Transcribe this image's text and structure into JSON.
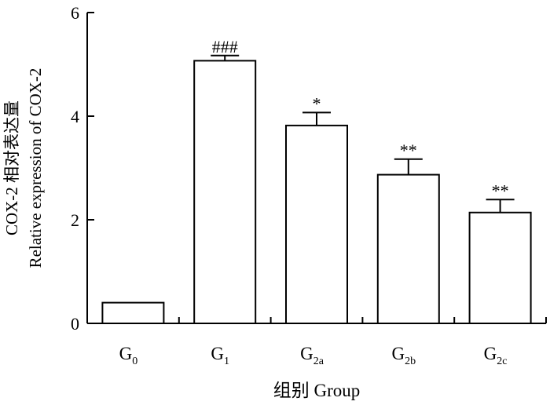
{
  "chart_data": {
    "type": "bar",
    "title": "",
    "xlabel": "组别  Group",
    "ylabel_cn": "COX-2 相对表达量",
    "ylabel_en": "Relative expression of COX-2",
    "ylim": [
      0,
      6
    ],
    "yticks": [
      0,
      2,
      4,
      6
    ],
    "grid": false,
    "categories": [
      {
        "base": "G",
        "sub": "0"
      },
      {
        "base": "G",
        "sub": "1"
      },
      {
        "base": "G",
        "sub": "2a"
      },
      {
        "base": "G",
        "sub": "2b"
      },
      {
        "base": "G",
        "sub": "2c"
      }
    ],
    "values": [
      0.4,
      5.07,
      3.82,
      2.87,
      2.14
    ],
    "errors": [
      0.0,
      0.1,
      0.25,
      0.3,
      0.25
    ],
    "annotations": [
      "",
      "###",
      "*",
      "**",
      "**"
    ],
    "bar_fill": "#ffffff",
    "bar_stroke": "#000000"
  }
}
